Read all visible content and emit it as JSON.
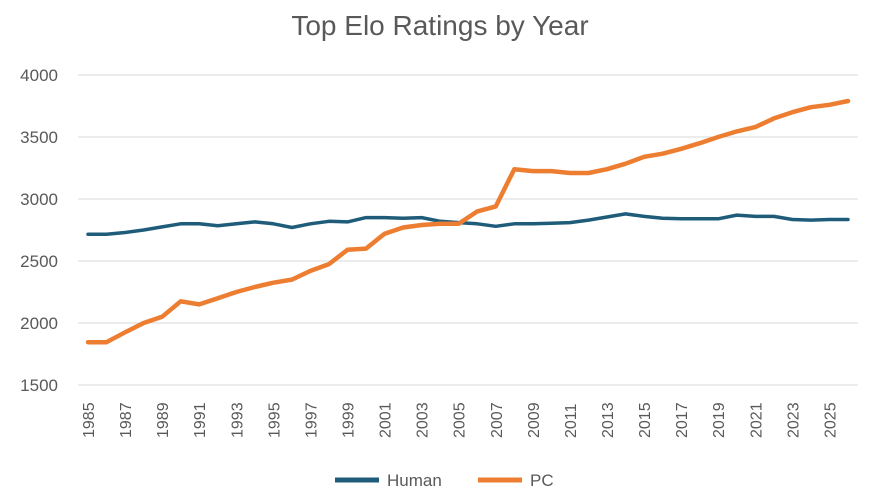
{
  "chart_data": {
    "type": "line",
    "title": "Top Elo Ratings by Year",
    "xlabel": "",
    "ylabel": "",
    "ylim": [
      1500,
      4000
    ],
    "yticks": [
      "1500",
      "2000",
      "2500",
      "3000",
      "3500",
      "4000"
    ],
    "x": [
      1985,
      1986,
      1987,
      1988,
      1989,
      1990,
      1991,
      1992,
      1993,
      1994,
      1995,
      1996,
      1997,
      1998,
      1999,
      2000,
      2001,
      2002,
      2003,
      2004,
      2005,
      2006,
      2007,
      2008,
      2009,
      2010,
      2011,
      2012,
      2013,
      2014,
      2015,
      2016,
      2017,
      2018,
      2019,
      2020,
      2021,
      2022,
      2023,
      2024,
      2025,
      2026
    ],
    "xticks": [
      "1985",
      "1987",
      "1989",
      "1991",
      "1993",
      "1995",
      "1997",
      "1999",
      "2001",
      "2003",
      "2005",
      "2007",
      "2009",
      "2011",
      "2013",
      "2015",
      "2017",
      "2019",
      "2021",
      "2023",
      "2025"
    ],
    "grid": true,
    "legend_position": "bottom",
    "series": [
      {
        "name": "Human",
        "color": "#1f5c7a",
        "values": [
          2715,
          2715,
          2730,
          2750,
          2775,
          2800,
          2800,
          2785,
          2800,
          2815,
          2800,
          2770,
          2800,
          2820,
          2815,
          2850,
          2850,
          2845,
          2850,
          2820,
          2810,
          2800,
          2780,
          2800,
          2800,
          2805,
          2810,
          2830,
          2855,
          2880,
          2860,
          2845,
          2840,
          2840,
          2840,
          2870,
          2860,
          2860,
          2835,
          2830,
          2835,
          2835
        ]
      },
      {
        "name": "PC",
        "color": "#ed7d31",
        "values": [
          1845,
          1845,
          1925,
          2000,
          2050,
          2175,
          2150,
          2200,
          2250,
          2290,
          2325,
          2350,
          2420,
          2475,
          2590,
          2600,
          2720,
          2770,
          2790,
          2800,
          2800,
          2900,
          2940,
          3240,
          3225,
          3225,
          3210,
          3210,
          3240,
          3285,
          3340,
          3365,
          3405,
          3450,
          3500,
          3545,
          3580,
          3650,
          3700,
          3740,
          3760,
          3790
        ]
      }
    ]
  }
}
